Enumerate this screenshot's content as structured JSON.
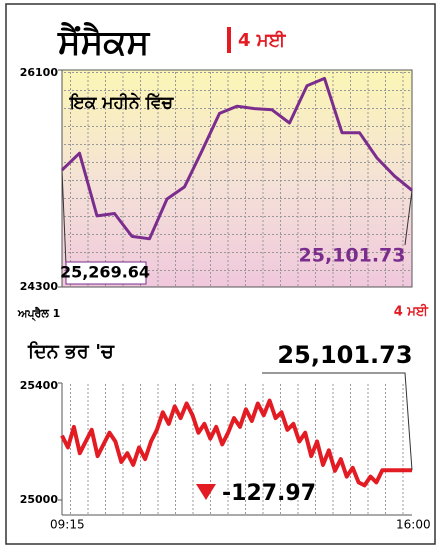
{
  "title": "ਸੈਂਸੈਕਸ",
  "date": "4 ਮਈ",
  "chart_data": [
    {
      "type": "line",
      "subtitle": "ਇਕ ਮਹੀਨੇ ਵਿੱਚ",
      "color": "#7b2d8e",
      "categories": [
        "ਅਪ੍ਰੈਲ 1",
        null,
        null,
        null,
        null,
        null,
        null,
        null,
        null,
        null,
        null,
        null,
        null,
        null,
        null,
        null,
        null,
        null,
        null,
        null,
        "4 ਮਈ"
      ],
      "values": [
        25269.64,
        25410,
        24890,
        24910,
        24720,
        24700,
        25030,
        25130,
        25430,
        25740,
        25800,
        25780,
        25770,
        25660,
        25970,
        26030,
        25580,
        25580,
        25370,
        25220,
        25101.73
      ],
      "value_labels": [
        "25,269.64",
        null,
        null,
        null,
        null,
        null,
        null,
        null,
        null,
        null,
        null,
        null,
        null,
        null,
        null,
        null,
        null,
        null,
        null,
        null,
        "25,101.73"
      ],
      "ylim": [
        24300,
        26100
      ],
      "yticks": [
        26100,
        24300
      ]
    },
    {
      "type": "line",
      "subtitle": "ਦਿਨ ਭਰ 'ਚ",
      "color": "#e31b23",
      "x_start": "09:15",
      "x_end": "16:00",
      "change": -127.97,
      "values": [
        25220,
        25180,
        25250,
        25160,
        25200,
        25240,
        25150,
        25190,
        25230,
        25200,
        25130,
        25160,
        25120,
        25180,
        25140,
        25200,
        25240,
        25300,
        25260,
        25320,
        25280,
        25330,
        25290,
        25230,
        25260,
        25210,
        25250,
        25190,
        25230,
        25280,
        25250,
        25310,
        25270,
        25330,
        25290,
        25340,
        25280,
        25300,
        25240,
        25260,
        25200,
        25230,
        25150,
        25200,
        25120,
        25170,
        25100,
        25140,
        25080,
        25110,
        25060,
        25050,
        25080,
        25060,
        25101.73,
        25101.73,
        25101.73,
        25101.73,
        25101.73,
        25101.73
      ],
      "value_labels": [
        null,
        null,
        null,
        null,
        null,
        null,
        null,
        null,
        null,
        null,
        null,
        null,
        null,
        null,
        null,
        null,
        null,
        null,
        null,
        null,
        null,
        null,
        null,
        null,
        null,
        null,
        null,
        null,
        null,
        null,
        null,
        null,
        null,
        null,
        null,
        null,
        null,
        null,
        null,
        null,
        null,
        null,
        null,
        null,
        null,
        null,
        null,
        null,
        null,
        null,
        null,
        null,
        null,
        null,
        null,
        null,
        null,
        null,
        null,
        "25,101.73"
      ],
      "ylim": [
        25000,
        25400
      ],
      "yticks": [
        25400,
        25000
      ]
    }
  ]
}
